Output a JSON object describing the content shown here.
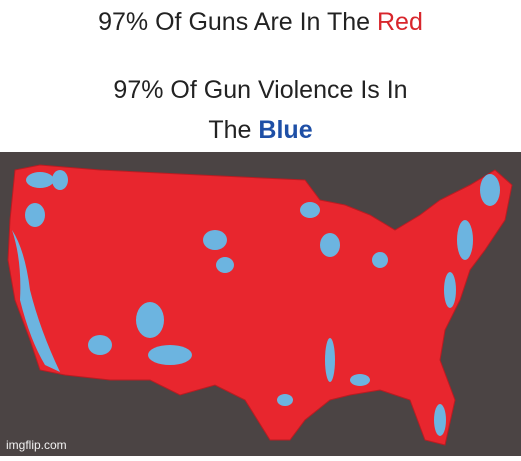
{
  "header": {
    "line1": "97% Of Guns Are In The",
    "line1_highlight": "Red",
    "line2": "97% Of Gun Violence Is In",
    "line3": "The",
    "line3_highlight": "Blue"
  },
  "watermark": "imgflip.com"
}
